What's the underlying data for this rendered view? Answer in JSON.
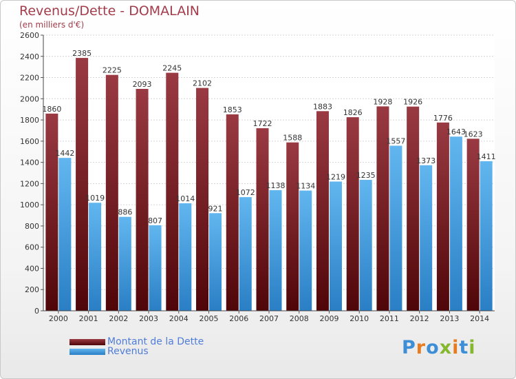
{
  "chart_data": {
    "type": "bar",
    "title": "Revenus/Dette - DOMALAIN",
    "subtitle": "(en milliers d'€)",
    "categories": [
      "2000",
      "2001",
      "2002",
      "2003",
      "2004",
      "2005",
      "2006",
      "2007",
      "2008",
      "2009",
      "2010",
      "2011",
      "2012",
      "2013",
      "2014"
    ],
    "series": [
      {
        "name": "Montant de la Dette",
        "values": [
          1860,
          2385,
          2225,
          2093,
          2245,
          2102,
          1853,
          1722,
          1588,
          1883,
          1826,
          1928,
          1926,
          1776,
          1623
        ],
        "color": "#7a1f24"
      },
      {
        "name": "Revenus",
        "values": [
          1442,
          1019,
          886,
          807,
          1014,
          921,
          1072,
          1138,
          1134,
          1219,
          1235,
          1557,
          1373,
          1643,
          1411
        ],
        "color": "#3f9fe0"
      }
    ],
    "ylim": [
      0,
      2600
    ],
    "yticks": [
      0,
      200,
      400,
      600,
      800,
      1000,
      1200,
      1400,
      1600,
      1800,
      2000,
      2200,
      2400,
      2600
    ],
    "grid": true,
    "legend_position": "bottom-left"
  },
  "logo": {
    "letters": [
      "P",
      "r",
      "o",
      "x",
      "i",
      "t",
      "i"
    ],
    "colors": [
      "#3c8fd6",
      "#e57c22",
      "#3c8fd6",
      "#86b82f",
      "#e57c22",
      "#3c8fd6",
      "#86b82f"
    ]
  }
}
